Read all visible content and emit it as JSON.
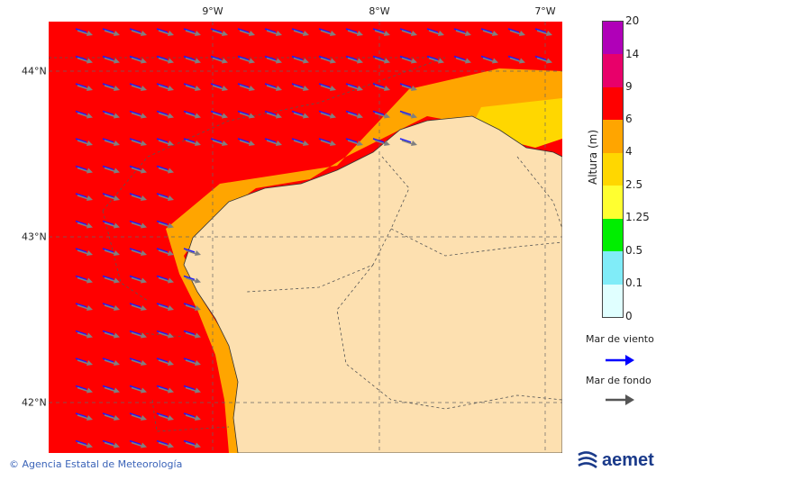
{
  "map": {
    "lon_ticks": [
      "9°W",
      "8°W",
      "7°W"
    ],
    "lat_ticks": [
      "44°N",
      "43°N",
      "42°N"
    ],
    "lon_range_deg": [
      -9.99,
      -6.9
    ],
    "lat_range_deg": [
      41.77,
      44.32
    ],
    "colors": {
      "sea_severe": "#ff0000",
      "sea_high": "#ffa500",
      "sea_moderate": "#ffd700",
      "land": "#fde0b0",
      "wind_arrow": "#1a1aff",
      "swell_arrow": "#808080"
    }
  },
  "legend": {
    "title": "Altura (m)",
    "levels": [
      "0",
      "0.1",
      "0.5",
      "1.25",
      "2.5",
      "4",
      "6",
      "9",
      "14",
      "20"
    ],
    "bands": [
      {
        "from": "0",
        "to": "0.1",
        "color": "#e0ffff"
      },
      {
        "from": "0.1",
        "to": "0.5",
        "color": "#80ecf8"
      },
      {
        "from": "0.5",
        "to": "1.25",
        "color": "#00ee00"
      },
      {
        "from": "1.25",
        "to": "2.5",
        "color": "#ffff30"
      },
      {
        "from": "2.5",
        "to": "4",
        "color": "#ffd700"
      },
      {
        "from": "4",
        "to": "6",
        "color": "#ffa500"
      },
      {
        "from": "6",
        "to": "9",
        "color": "#ff0000"
      },
      {
        "from": "9",
        "to": "14",
        "color": "#e8006a"
      },
      {
        "from": "14",
        "to": "20",
        "color": "#b000b8"
      }
    ]
  },
  "arrows_key": {
    "wind_sea_label": "Mar de viento",
    "swell_label": "Mar de fondo",
    "wind_color": "#0000ff",
    "swell_color": "#555555"
  },
  "footer": {
    "credit": "© Agencia Estatal de Meteorología",
    "logo_text": "aemet"
  }
}
